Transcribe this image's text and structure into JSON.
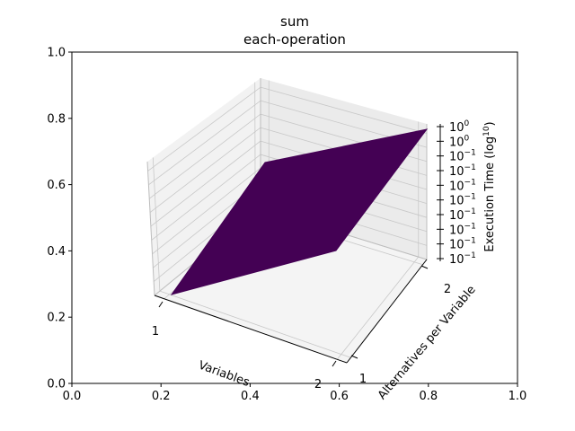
{
  "chart_data": {
    "type": "surface",
    "title": "sum",
    "subtitle": "each-operation",
    "outer_axes": {
      "x_ticks": [
        "0.0",
        "0.2",
        "0.4",
        "0.6",
        "0.8",
        "1.0"
      ],
      "y_ticks": [
        "0.0",
        "0.2",
        "0.4",
        "0.6",
        "0.8",
        "1.0"
      ],
      "xlim": [
        0,
        1
      ],
      "ylim": [
        0,
        1
      ]
    },
    "axes3d": {
      "xlabel": "Variables",
      "ylabel": "Alternatives per Variable",
      "zlabel_main": "Execution Time (log",
      "zlabel_sup": "10",
      "zlabel_close": ")",
      "x_ticks": [
        "1",
        "2"
      ],
      "y_ticks": [
        "1",
        "2"
      ],
      "z_ticks": [
        {
          "base": "10",
          "exp": "0"
        },
        {
          "base": "10",
          "exp": "0"
        },
        {
          "base": "10",
          "exp": "−1"
        },
        {
          "base": "10",
          "exp": "−1"
        },
        {
          "base": "10",
          "exp": "−1"
        },
        {
          "base": "10",
          "exp": "−1"
        },
        {
          "base": "10",
          "exp": "−1"
        },
        {
          "base": "10",
          "exp": "−1"
        },
        {
          "base": "10",
          "exp": "−1"
        },
        {
          "base": "10",
          "exp": "−1"
        }
      ]
    },
    "surface_color": "#440154",
    "grid": true
  }
}
